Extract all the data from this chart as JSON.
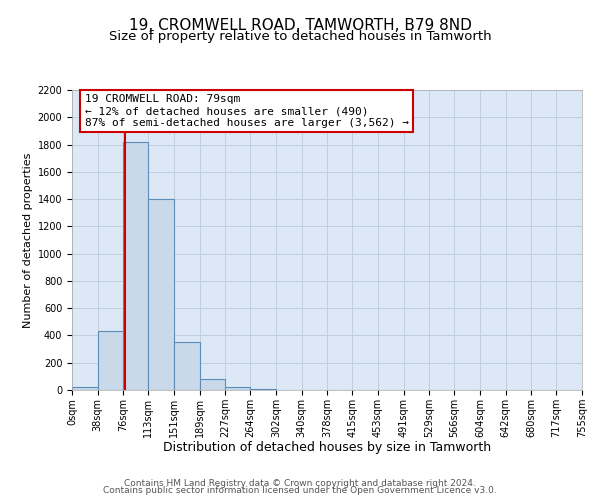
{
  "title": "19, CROMWELL ROAD, TAMWORTH, B79 8ND",
  "subtitle": "Size of property relative to detached houses in Tamworth",
  "xlabel": "Distribution of detached houses by size in Tamworth",
  "ylabel": "Number of detached properties",
  "bin_edges": [
    0,
    38,
    76,
    113,
    151,
    189,
    227,
    264,
    302,
    340,
    378,
    415,
    453,
    491,
    529,
    566,
    604,
    642,
    680,
    717,
    755
  ],
  "bin_counts": [
    20,
    430,
    1820,
    1400,
    350,
    80,
    25,
    5,
    0,
    0,
    0,
    0,
    0,
    0,
    0,
    0,
    0,
    0,
    0,
    0
  ],
  "bar_facecolor": "#c9d9ea",
  "bar_edgecolor": "#5b8db8",
  "bar_linewidth": 0.8,
  "vline_x": 79,
  "vline_color": "#cc0000",
  "vline_linewidth": 1.5,
  "annotation_line1": "19 CROMWELL ROAD: 79sqm",
  "annotation_line2": "← 12% of detached houses are smaller (490)",
  "annotation_line3": "87% of semi-detached houses are larger (3,562) →",
  "annotation_box_edgecolor": "#cc0000",
  "annotation_box_facecolor": "white",
  "ylim": [
    0,
    2200
  ],
  "yticks": [
    0,
    200,
    400,
    600,
    800,
    1000,
    1200,
    1400,
    1600,
    1800,
    2000,
    2200
  ],
  "tick_labels": [
    "0sqm",
    "38sqm",
    "76sqm",
    "113sqm",
    "151sqm",
    "189sqm",
    "227sqm",
    "264sqm",
    "302sqm",
    "340sqm",
    "378sqm",
    "415sqm",
    "453sqm",
    "491sqm",
    "529sqm",
    "566sqm",
    "604sqm",
    "642sqm",
    "680sqm",
    "717sqm",
    "755sqm"
  ],
  "grid_color": "#c0cfe0",
  "background_color": "#dce8f5",
  "footer_line1": "Contains HM Land Registry data © Crown copyright and database right 2024.",
  "footer_line2": "Contains public sector information licensed under the Open Government Licence v3.0.",
  "title_fontsize": 11,
  "subtitle_fontsize": 9.5,
  "xlabel_fontsize": 9,
  "ylabel_fontsize": 8,
  "tick_fontsize": 7,
  "annotation_fontsize": 8,
  "footer_fontsize": 6.5
}
